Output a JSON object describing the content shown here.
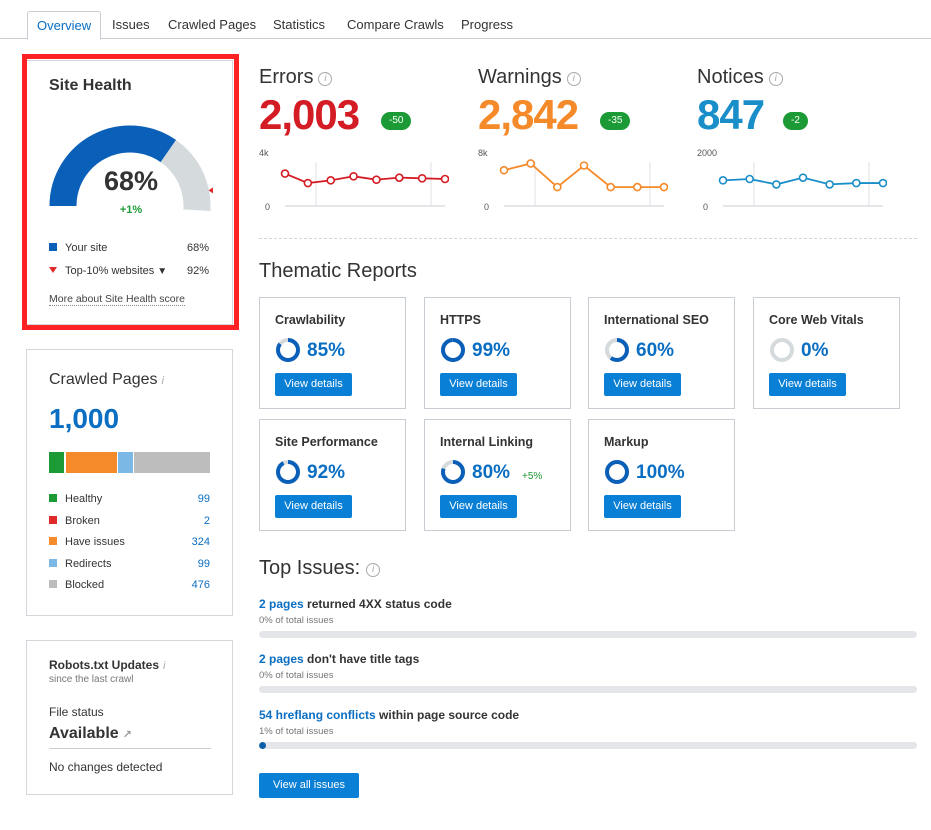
{
  "tabs": [
    "Overview",
    "Issues",
    "Crawled Pages",
    "Statistics",
    "Compare Crawls",
    "Progress"
  ],
  "site_health": {
    "title": "Site Health",
    "score": "68%",
    "score_value": 68,
    "top10_value": 92,
    "delta": "+1%",
    "legend": [
      {
        "label": "Your site",
        "value": "68%",
        "color": "#0a5fb8"
      },
      {
        "label": "Top-10% websites",
        "value": "92%",
        "color": "#e02a2a"
      }
    ],
    "link": "More about Site Health score",
    "colors": {
      "fill": "#0a5fb8",
      "track": "#d5dadd",
      "marker": "#e02a2a"
    }
  },
  "crawled_pages": {
    "title": "Crawled Pages",
    "info": "i",
    "count": "1,000",
    "items": [
      {
        "label": "Healthy",
        "value": "99",
        "color": "#1b9a35"
      },
      {
        "label": "Broken",
        "value": "2",
        "color": "#e02a2a"
      },
      {
        "label": "Have issues",
        "value": "324",
        "color": "#f58a2b"
      },
      {
        "label": "Redirects",
        "value": "99",
        "color": "#7cb8e6"
      },
      {
        "label": "Blocked",
        "value": "476",
        "color": "#bdbdbd"
      }
    ]
  },
  "robots": {
    "title": "Robots.txt Updates",
    "info": "i",
    "subtitle": "since the last crawl",
    "file_status_label": "File status",
    "file_status": "Available",
    "changes": "No changes detected"
  },
  "metrics": [
    {
      "label": "Errors",
      "value": "2,003",
      "delta": "-50",
      "color": "#d41c24",
      "ymax_label": "4k",
      "ymin_label": "0",
      "ymax": 4000,
      "points": [
        2400,
        1700,
        1900,
        2200,
        1950,
        2100,
        2050,
        2000
      ]
    },
    {
      "label": "Warnings",
      "value": "2,842",
      "delta": "-35",
      "color": "#f58a2b",
      "ymax_label": "8k",
      "ymin_label": "0",
      "ymax": 8000,
      "points": [
        5300,
        6300,
        2800,
        6000,
        2800,
        2800,
        2800
      ]
    },
    {
      "label": "Notices",
      "value": "847",
      "delta": "-2",
      "color": "#1a8ec9",
      "ymax_label": "2000",
      "ymin_label": "0",
      "ymax": 2000,
      "points": [
        950,
        1000,
        800,
        1050,
        800,
        850,
        850
      ]
    }
  ],
  "thematic": {
    "title": "Thematic Reports",
    "button_label": "View details",
    "ring_colors": {
      "fill": "#0a5fb8",
      "track": "#d5dadd"
    },
    "cards": [
      {
        "name": "Crawlability",
        "percent": "85%",
        "value": 85,
        "delta": ""
      },
      {
        "name": "HTTPS",
        "percent": "99%",
        "value": 99,
        "delta": ""
      },
      {
        "name": "International SEO",
        "percent": "60%",
        "value": 60,
        "delta": ""
      },
      {
        "name": "Core Web Vitals",
        "percent": "0%",
        "value": 0,
        "delta": ""
      },
      {
        "name": "Site Performance",
        "percent": "92%",
        "value": 92,
        "delta": ""
      },
      {
        "name": "Internal Linking",
        "percent": "80%",
        "value": 80,
        "delta": "+5%"
      },
      {
        "name": "Markup",
        "percent": "100%",
        "value": 100,
        "delta": ""
      }
    ]
  },
  "top_issues": {
    "title": "Top Issues:",
    "items": [
      {
        "link": "2 pages",
        "text": "returned 4XX status code",
        "pct_label": "0%",
        "sub": "of total issues",
        "fraction": 0
      },
      {
        "link": "2 pages",
        "text": "don't have title tags",
        "pct_label": "0%",
        "sub": "of total issues",
        "fraction": 0
      },
      {
        "link": "54 hreflang conflicts",
        "text": "within page source code",
        "pct_label": "1%",
        "sub": "of total issues",
        "fraction": 0.01
      }
    ],
    "view_all": "View all issues"
  }
}
